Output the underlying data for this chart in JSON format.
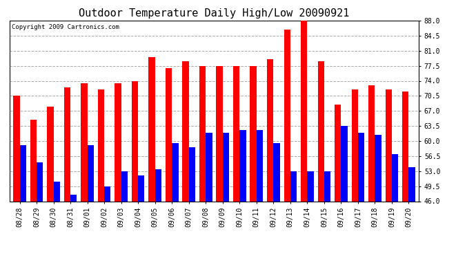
{
  "title": "Outdoor Temperature Daily High/Low 20090921",
  "copyright": "Copyright 2009 Cartronics.com",
  "categories": [
    "08/28",
    "08/29",
    "08/30",
    "08/31",
    "09/01",
    "09/02",
    "09/03",
    "09/04",
    "09/05",
    "09/06",
    "09/07",
    "09/08",
    "09/09",
    "09/10",
    "09/11",
    "09/12",
    "09/13",
    "09/14",
    "09/15",
    "09/16",
    "09/17",
    "09/18",
    "09/19",
    "09/20"
  ],
  "highs": [
    70.5,
    65.0,
    68.0,
    72.5,
    73.5,
    72.0,
    73.5,
    74.0,
    79.5,
    77.0,
    78.5,
    77.5,
    77.5,
    77.5,
    77.5,
    79.0,
    86.0,
    88.0,
    78.5,
    68.5,
    72.0,
    73.0,
    72.0,
    71.5
  ],
  "lows": [
    59.0,
    55.0,
    50.5,
    47.5,
    59.0,
    49.5,
    53.0,
    52.0,
    53.5,
    59.5,
    58.5,
    62.0,
    62.0,
    62.5,
    62.5,
    59.5,
    53.0,
    53.0,
    53.0,
    63.5,
    62.0,
    61.5,
    57.0,
    54.0
  ],
  "high_color": "#ff0000",
  "low_color": "#0000ff",
  "bg_color": "#ffffff",
  "plot_bg_color": "#ffffff",
  "grid_color": "#aaaaaa",
  "ymin": 46.0,
  "ymax": 88.0,
  "yticks": [
    46.0,
    49.5,
    53.0,
    56.5,
    60.0,
    63.5,
    67.0,
    70.5,
    74.0,
    77.5,
    81.0,
    84.5,
    88.0
  ],
  "bar_width": 0.38,
  "title_fontsize": 11,
  "tick_fontsize": 7,
  "copyright_fontsize": 6.5
}
